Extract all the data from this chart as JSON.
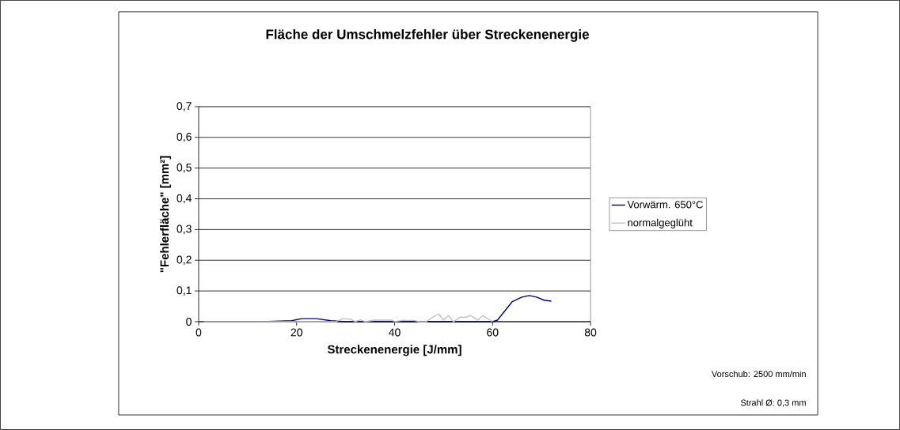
{
  "chart_data": {
    "type": "line",
    "title": "Fläche der Umschmelzfehler über Streckenenergie",
    "xlabel": "Streckenenergie [J/mm]",
    "ylabel": "\"Fehlerfläche\" [mm²]",
    "annotations": [
      "Vorschub: 2500 mm/min",
      "Strahl Ø: 0,3 mm"
    ],
    "series": [
      {
        "name": "Vorwärm. 650°C",
        "color": "#000080",
        "x": [
          1,
          13,
          19,
          21,
          24,
          27,
          30,
          45,
          60,
          61,
          64,
          66,
          67.5,
          69,
          70.5,
          72
        ],
        "values": [
          0,
          0,
          0.003,
          0.01,
          0.01,
          0.003,
          0,
          0,
          0,
          0.005,
          0.065,
          0.08,
          0.085,
          0.08,
          0.07,
          0.067
        ]
      },
      {
        "name": "normalgeglüht",
        "color": "#c0c0c0",
        "x": [
          1,
          28,
          29.5,
          31,
          32,
          33,
          34,
          36,
          39.5,
          40,
          41.5,
          44,
          45,
          46.5,
          47.5,
          49,
          50,
          51,
          52,
          53.5,
          54.5,
          55.5,
          57,
          58,
          60
        ],
        "values": [
          0,
          0,
          0.01,
          0.008,
          0,
          0.006,
          0,
          0.005,
          0.005,
          0,
          0.004,
          0.004,
          0,
          0,
          0.012,
          0.025,
          0.005,
          0.02,
          0,
          0.015,
          0.014,
          0.02,
          0.005,
          0.02,
          0
        ]
      }
    ],
    "xlim": [
      0,
      80
    ],
    "xticks": [
      0,
      20,
      40,
      60,
      80
    ],
    "ylim": [
      0,
      0.7
    ],
    "yticks": [
      0,
      {
        "value": 0.1,
        "label": "0,1"
      },
      {
        "value": 0.2,
        "label": "0,2"
      },
      {
        "value": 0.3,
        "label": "0,3"
      },
      {
        "value": 0.4,
        "label": "0,4"
      },
      {
        "value": 0.5,
        "label": "0,5"
      },
      {
        "value": 0.6,
        "label": "0,6"
      },
      {
        "value": 0.7,
        "label": "0,7"
      }
    ],
    "grid": "y",
    "legend": "right",
    "line_style": "solid"
  }
}
